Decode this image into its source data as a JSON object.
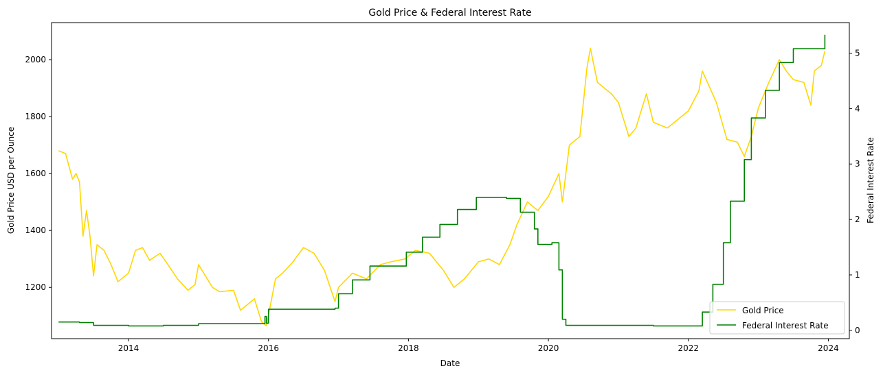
{
  "chart_data": {
    "type": "line",
    "title": "Gold Price & Federal Interest Rate",
    "xlabel": "Date",
    "ylabel_left": "Gold Price USD per Ounce",
    "ylabel_right": "Federal Interest Rate",
    "xlim": [
      2012.9,
      2024.3
    ],
    "ylim_left": [
      1020,
      2130
    ],
    "ylim_right": [
      -0.15,
      5.55
    ],
    "x_ticks": [
      2014,
      2016,
      2018,
      2020,
      2022,
      2024
    ],
    "y_ticks_left": [
      1200,
      1400,
      1600,
      1800,
      2000
    ],
    "y_ticks_right": [
      0,
      1,
      2,
      3,
      4,
      5
    ],
    "grid": false,
    "legend_position": "lower-right",
    "series": [
      {
        "name": "Gold Price",
        "axis": "left",
        "color": "#FFD700",
        "x": [
          2013.0,
          2013.1,
          2013.2,
          2013.25,
          2013.3,
          2013.35,
          2013.4,
          2013.45,
          2013.5,
          2013.55,
          2013.65,
          2013.75,
          2013.85,
          2013.95,
          2014.0,
          2014.1,
          2014.2,
          2014.3,
          2014.45,
          2014.55,
          2014.7,
          2014.85,
          2014.95,
          2015.0,
          2015.05,
          2015.2,
          2015.3,
          2015.5,
          2015.6,
          2015.7,
          2015.8,
          2015.9,
          2015.97,
          2016.1,
          2016.2,
          2016.35,
          2016.5,
          2016.65,
          2016.8,
          2016.95,
          2017.0,
          2017.2,
          2017.4,
          2017.6,
          2017.75,
          2017.95,
          2018.1,
          2018.3,
          2018.5,
          2018.65,
          2018.8,
          2019.0,
          2019.15,
          2019.3,
          2019.45,
          2019.55,
          2019.7,
          2019.85,
          2020.0,
          2020.15,
          2020.2,
          2020.3,
          2020.45,
          2020.55,
          2020.6,
          2020.7,
          2020.9,
          2021.0,
          2021.15,
          2021.25,
          2021.4,
          2021.5,
          2021.7,
          2021.9,
          2022.0,
          2022.15,
          2022.2,
          2022.4,
          2022.55,
          2022.7,
          2022.8,
          2022.9,
          2023.0,
          2023.15,
          2023.3,
          2023.4,
          2023.5,
          2023.65,
          2023.75,
          2023.8,
          2023.9,
          2023.95
        ],
        "values": [
          1680,
          1670,
          1580,
          1600,
          1570,
          1380,
          1470,
          1380,
          1240,
          1350,
          1330,
          1280,
          1220,
          1240,
          1250,
          1330,
          1340,
          1295,
          1320,
          1285,
          1230,
          1190,
          1210,
          1280,
          1260,
          1200,
          1185,
          1190,
          1120,
          1140,
          1160,
          1080,
          1065,
          1230,
          1250,
          1290,
          1340,
          1320,
          1260,
          1150,
          1200,
          1250,
          1230,
          1280,
          1290,
          1300,
          1330,
          1320,
          1260,
          1200,
          1230,
          1290,
          1300,
          1280,
          1350,
          1420,
          1500,
          1470,
          1520,
          1600,
          1500,
          1700,
          1730,
          1970,
          2040,
          1920,
          1880,
          1850,
          1730,
          1760,
          1880,
          1780,
          1760,
          1800,
          1820,
          1890,
          1960,
          1850,
          1720,
          1710,
          1660,
          1730,
          1830,
          1920,
          2000,
          1960,
          1930,
          1920,
          1840,
          1960,
          1980,
          2030
        ]
      },
      {
        "name": "Federal Interest Rate",
        "axis": "right",
        "color": "#008000",
        "x": [
          2013.0,
          2013.3,
          2013.5,
          2014.0,
          2014.5,
          2015.0,
          2015.9,
          2015.95,
          2015.97,
          2016.0,
          2016.95,
          2017.0,
          2017.2,
          2017.45,
          2017.97,
          2018.2,
          2018.45,
          2018.7,
          2018.97,
          2019.4,
          2019.6,
          2019.8,
          2019.85,
          2020.05,
          2020.15,
          2020.2,
          2020.25,
          2021.5,
          2022.0,
          2022.2,
          2022.35,
          2022.5,
          2022.6,
          2022.8,
          2022.9,
          2023.1,
          2023.3,
          2023.5,
          2023.95
        ],
        "values": [
          0.15,
          0.14,
          0.09,
          0.08,
          0.09,
          0.12,
          0.12,
          0.25,
          0.13,
          0.38,
          0.4,
          0.66,
          0.91,
          1.16,
          1.41,
          1.68,
          1.91,
          2.18,
          2.4,
          2.38,
          2.13,
          1.83,
          1.55,
          1.58,
          1.09,
          0.2,
          0.09,
          0.08,
          0.08,
          0.33,
          0.83,
          1.58,
          2.33,
          3.08,
          3.83,
          4.33,
          4.83,
          5.08,
          5.33
        ]
      }
    ]
  }
}
